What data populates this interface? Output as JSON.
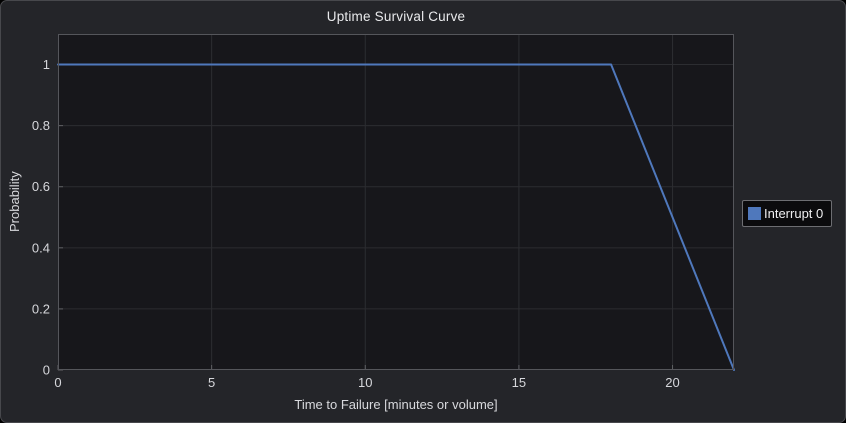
{
  "window": {
    "background": "#242529",
    "border_color": "#47484c"
  },
  "chart_data": {
    "type": "line",
    "title": "Uptime Survival Curve",
    "xlabel": "Time to Failure [minutes or volume]",
    "ylabel": "Probability",
    "xlim": [
      0,
      22
    ],
    "ylim": [
      0,
      1.1
    ],
    "x_ticks": [
      0,
      5,
      10,
      15,
      20
    ],
    "y_ticks": [
      0,
      0.2,
      0.4,
      0.6,
      0.8,
      1
    ],
    "grid": true,
    "legend_position": "right",
    "series": [
      {
        "name": "Interrupt 0",
        "color": "#4f78bc",
        "x": [
          0,
          18,
          22
        ],
        "y": [
          1,
          1,
          0
        ]
      }
    ],
    "style": {
      "plot_background": "#17171b",
      "grid_color": "#2c2d31",
      "axis_color": "#55565b",
      "tick_mark_color": "#5f6064",
      "tick_text_color": "#d6d7db",
      "title_color": "#e9eaec",
      "legend_background": "#0b0b0d",
      "legend_border": "#6d6e72"
    }
  }
}
